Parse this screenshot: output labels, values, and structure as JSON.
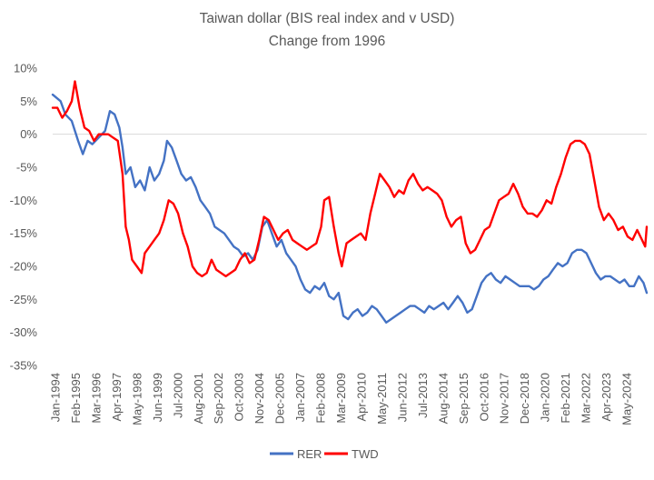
{
  "chart_data": {
    "type": "line",
    "title": "Taiwan dollar (BIS real index and v USD)",
    "subtitle": "Change from 1996",
    "x_tick_labels": [
      "Jan-1994",
      "Feb-1995",
      "Mar-1996",
      "Apr-1997",
      "May-1998",
      "Jun-1999",
      "Jul-2000",
      "Aug-2001",
      "Sep-2002",
      "Oct-2003",
      "Nov-2004",
      "Dec-2005",
      "Jan-2007",
      "Feb-2008",
      "Mar-2009",
      "Apr-2010",
      "May-2011",
      "Jun-2012",
      "Jul-2013",
      "Aug-2014",
      "Sep-2015",
      "Oct-2016",
      "Nov-2017",
      "Dec-2018",
      "Jan-2020",
      "Feb-2021",
      "Mar-2022",
      "Apr-2023",
      "May-2024"
    ],
    "x_range": [
      "1994-01",
      "2025-03"
    ],
    "y_tick_labels": [
      "10%",
      "5%",
      "0%",
      "-5%",
      "-10%",
      "-15%",
      "-20%",
      "-25%",
      "-30%",
      "-35%"
    ],
    "ylim": [
      -35,
      10
    ],
    "y_unit": "%",
    "grid": false,
    "legend_position": "bottom",
    "series": [
      {
        "name": "RER",
        "color": "#4472C4",
        "points": [
          [
            "1994-01",
            6.0
          ],
          [
            "1994-06",
            5.0
          ],
          [
            "1994-09",
            3.0
          ],
          [
            "1995-01",
            2.0
          ],
          [
            "1995-05",
            -1.0
          ],
          [
            "1995-08",
            -3.0
          ],
          [
            "1995-11",
            -1.0
          ],
          [
            "1996-02",
            -1.5
          ],
          [
            "1996-06",
            -0.5
          ],
          [
            "1996-10",
            0.5
          ],
          [
            "1997-01",
            3.5
          ],
          [
            "1997-04",
            3.0
          ],
          [
            "1997-07",
            1.0
          ],
          [
            "1997-09",
            -2.0
          ],
          [
            "1997-11",
            -6.0
          ],
          [
            "1998-02",
            -5.0
          ],
          [
            "1998-05",
            -8.0
          ],
          [
            "1998-08",
            -7.0
          ],
          [
            "1998-11",
            -8.5
          ],
          [
            "1999-02",
            -5.0
          ],
          [
            "1999-05",
            -7.0
          ],
          [
            "1999-08",
            -6.0
          ],
          [
            "1999-11",
            -4.0
          ],
          [
            "2000-01",
            -1.0
          ],
          [
            "2000-04",
            -2.0
          ],
          [
            "2000-07",
            -4.0
          ],
          [
            "2000-10",
            -6.0
          ],
          [
            "2001-01",
            -7.0
          ],
          [
            "2001-04",
            -6.5
          ],
          [
            "2001-07",
            -8.0
          ],
          [
            "2001-10",
            -10.0
          ],
          [
            "2002-01",
            -11.0
          ],
          [
            "2002-04",
            -12.0
          ],
          [
            "2002-07",
            -14.0
          ],
          [
            "2002-10",
            -14.5
          ],
          [
            "2003-01",
            -15.0
          ],
          [
            "2003-04",
            -16.0
          ],
          [
            "2003-07",
            -17.0
          ],
          [
            "2003-10",
            -17.5
          ],
          [
            "2004-01",
            -18.5
          ],
          [
            "2004-04",
            -18.0
          ],
          [
            "2004-07",
            -19.0
          ],
          [
            "2004-10",
            -17.5
          ],
          [
            "2005-01",
            -14.0
          ],
          [
            "2005-04",
            -13.0
          ],
          [
            "2005-07",
            -15.0
          ],
          [
            "2005-10",
            -17.0
          ],
          [
            "2006-01",
            -16.0
          ],
          [
            "2006-04",
            -18.0
          ],
          [
            "2006-07",
            -19.0
          ],
          [
            "2006-10",
            -20.0
          ],
          [
            "2007-01",
            -22.0
          ],
          [
            "2007-04",
            -23.5
          ],
          [
            "2007-07",
            -24.0
          ],
          [
            "2007-10",
            -23.0
          ],
          [
            "2008-01",
            -23.5
          ],
          [
            "2008-04",
            -22.5
          ],
          [
            "2008-07",
            -24.5
          ],
          [
            "2008-10",
            -25.0
          ],
          [
            "2009-01",
            -24.0
          ],
          [
            "2009-04",
            -27.5
          ],
          [
            "2009-07",
            -28.0
          ],
          [
            "2009-10",
            -27.0
          ],
          [
            "2010-01",
            -26.5
          ],
          [
            "2010-04",
            -27.5
          ],
          [
            "2010-07",
            -27.0
          ],
          [
            "2010-10",
            -26.0
          ],
          [
            "2011-01",
            -26.5
          ],
          [
            "2011-04",
            -27.5
          ],
          [
            "2011-07",
            -28.5
          ],
          [
            "2011-10",
            -28.0
          ],
          [
            "2012-01",
            -27.5
          ],
          [
            "2012-04",
            -27.0
          ],
          [
            "2012-07",
            -26.5
          ],
          [
            "2012-10",
            -26.0
          ],
          [
            "2013-01",
            -26.0
          ],
          [
            "2013-04",
            -26.5
          ],
          [
            "2013-07",
            -27.0
          ],
          [
            "2013-10",
            -26.0
          ],
          [
            "2014-01",
            -26.5
          ],
          [
            "2014-04",
            -26.0
          ],
          [
            "2014-07",
            -25.5
          ],
          [
            "2014-10",
            -26.5
          ],
          [
            "2015-01",
            -25.5
          ],
          [
            "2015-04",
            -24.5
          ],
          [
            "2015-07",
            -25.5
          ],
          [
            "2015-10",
            -27.0
          ],
          [
            "2016-01",
            -26.5
          ],
          [
            "2016-04",
            -24.5
          ],
          [
            "2016-07",
            -22.5
          ],
          [
            "2016-10",
            -21.5
          ],
          [
            "2017-01",
            -21.0
          ],
          [
            "2017-04",
            -22.0
          ],
          [
            "2017-07",
            -22.5
          ],
          [
            "2017-10",
            -21.5
          ],
          [
            "2018-01",
            -22.0
          ],
          [
            "2018-04",
            -22.5
          ],
          [
            "2018-07",
            -23.0
          ],
          [
            "2018-10",
            -23.0
          ],
          [
            "2019-01",
            -23.0
          ],
          [
            "2019-04",
            -23.5
          ],
          [
            "2019-07",
            -23.0
          ],
          [
            "2019-10",
            -22.0
          ],
          [
            "2020-01",
            -21.5
          ],
          [
            "2020-04",
            -20.5
          ],
          [
            "2020-07",
            -19.5
          ],
          [
            "2020-10",
            -20.0
          ],
          [
            "2021-01",
            -19.5
          ],
          [
            "2021-04",
            -18.0
          ],
          [
            "2021-07",
            -17.5
          ],
          [
            "2021-10",
            -17.5
          ],
          [
            "2022-01",
            -18.0
          ],
          [
            "2022-04",
            -19.5
          ],
          [
            "2022-07",
            -21.0
          ],
          [
            "2022-10",
            -22.0
          ],
          [
            "2023-01",
            -21.5
          ],
          [
            "2023-04",
            -21.5
          ],
          [
            "2023-07",
            -22.0
          ],
          [
            "2023-10",
            -22.5
          ],
          [
            "2024-01",
            -22.0
          ],
          [
            "2024-04",
            -23.0
          ],
          [
            "2024-07",
            -23.0
          ],
          [
            "2024-10",
            -21.5
          ],
          [
            "2025-01",
            -22.5
          ],
          [
            "2025-03",
            -24.0
          ]
        ]
      },
      {
        "name": "TWD",
        "color": "#FF0000",
        "points": [
          [
            "1994-01",
            4.0
          ],
          [
            "1994-04",
            4.0
          ],
          [
            "1994-07",
            2.5
          ],
          [
            "1994-10",
            3.5
          ],
          [
            "1995-01",
            5.0
          ],
          [
            "1995-03",
            8.0
          ],
          [
            "1995-06",
            4.0
          ],
          [
            "1995-09",
            1.0
          ],
          [
            "1995-12",
            0.5
          ],
          [
            "1996-03",
            -1.0
          ],
          [
            "1996-06",
            0.0
          ],
          [
            "1996-09",
            0.0
          ],
          [
            "1996-12",
            0.0
          ],
          [
            "1997-03",
            -0.5
          ],
          [
            "1997-06",
            -1.0
          ],
          [
            "1997-09",
            -6.0
          ],
          [
            "1997-11",
            -14.0
          ],
          [
            "1998-01",
            -16.0
          ],
          [
            "1998-03",
            -19.0
          ],
          [
            "1998-06",
            -20.0
          ],
          [
            "1998-09",
            -21.0
          ],
          [
            "1998-11",
            -18.0
          ],
          [
            "1999-02",
            -17.0
          ],
          [
            "1999-05",
            -16.0
          ],
          [
            "1999-08",
            -15.0
          ],
          [
            "1999-11",
            -13.0
          ],
          [
            "2000-02",
            -10.0
          ],
          [
            "2000-05",
            -10.5
          ],
          [
            "2000-08",
            -12.0
          ],
          [
            "2000-11",
            -15.0
          ],
          [
            "2001-02",
            -17.0
          ],
          [
            "2001-05",
            -20.0
          ],
          [
            "2001-08",
            -21.0
          ],
          [
            "2001-11",
            -21.5
          ],
          [
            "2002-02",
            -21.0
          ],
          [
            "2002-05",
            -19.0
          ],
          [
            "2002-08",
            -20.5
          ],
          [
            "2002-11",
            -21.0
          ],
          [
            "2003-02",
            -21.5
          ],
          [
            "2003-05",
            -21.0
          ],
          [
            "2003-08",
            -20.5
          ],
          [
            "2003-11",
            -19.0
          ],
          [
            "2004-02",
            -18.0
          ],
          [
            "2004-05",
            -19.5
          ],
          [
            "2004-08",
            -19.0
          ],
          [
            "2004-11",
            -16.0
          ],
          [
            "2005-02",
            -12.5
          ],
          [
            "2005-05",
            -13.0
          ],
          [
            "2005-08",
            -14.5
          ],
          [
            "2005-11",
            -16.0
          ],
          [
            "2006-02",
            -15.0
          ],
          [
            "2006-05",
            -14.5
          ],
          [
            "2006-08",
            -16.0
          ],
          [
            "2006-11",
            -16.5
          ],
          [
            "2007-02",
            -17.0
          ],
          [
            "2007-05",
            -17.5
          ],
          [
            "2007-08",
            -17.0
          ],
          [
            "2007-11",
            -16.5
          ],
          [
            "2008-02",
            -14.0
          ],
          [
            "2008-04",
            -10.0
          ],
          [
            "2008-07",
            -9.5
          ],
          [
            "2008-10",
            -14.0
          ],
          [
            "2009-01",
            -18.0
          ],
          [
            "2009-03",
            -20.0
          ],
          [
            "2009-06",
            -16.5
          ],
          [
            "2009-09",
            -16.0
          ],
          [
            "2009-12",
            -15.5
          ],
          [
            "2010-03",
            -15.0
          ],
          [
            "2010-06",
            -16.0
          ],
          [
            "2010-09",
            -12.0
          ],
          [
            "2010-12",
            -9.0
          ],
          [
            "2011-03",
            -6.0
          ],
          [
            "2011-06",
            -7.0
          ],
          [
            "2011-09",
            -8.0
          ],
          [
            "2011-12",
            -9.5
          ],
          [
            "2012-03",
            -8.5
          ],
          [
            "2012-06",
            -9.0
          ],
          [
            "2012-09",
            -7.0
          ],
          [
            "2012-12",
            -6.0
          ],
          [
            "2013-03",
            -7.5
          ],
          [
            "2013-06",
            -8.5
          ],
          [
            "2013-09",
            -8.0
          ],
          [
            "2013-12",
            -8.5
          ],
          [
            "2014-03",
            -9.0
          ],
          [
            "2014-06",
            -10.0
          ],
          [
            "2014-09",
            -12.5
          ],
          [
            "2014-12",
            -14.0
          ],
          [
            "2015-03",
            -13.0
          ],
          [
            "2015-06",
            -12.5
          ],
          [
            "2015-09",
            -16.5
          ],
          [
            "2015-12",
            -18.0
          ],
          [
            "2016-03",
            -17.5
          ],
          [
            "2016-06",
            -16.0
          ],
          [
            "2016-09",
            -14.5
          ],
          [
            "2016-12",
            -14.0
          ],
          [
            "2017-03",
            -12.0
          ],
          [
            "2017-06",
            -10.0
          ],
          [
            "2017-09",
            -9.5
          ],
          [
            "2017-12",
            -9.0
          ],
          [
            "2018-03",
            -7.5
          ],
          [
            "2018-06",
            -9.0
          ],
          [
            "2018-09",
            -11.0
          ],
          [
            "2018-12",
            -12.0
          ],
          [
            "2019-03",
            -12.0
          ],
          [
            "2019-06",
            -12.5
          ],
          [
            "2019-09",
            -11.5
          ],
          [
            "2019-12",
            -10.0
          ],
          [
            "2020-03",
            -10.5
          ],
          [
            "2020-06",
            -8.0
          ],
          [
            "2020-09",
            -6.0
          ],
          [
            "2020-12",
            -3.5
          ],
          [
            "2021-03",
            -1.5
          ],
          [
            "2021-06",
            -1.0
          ],
          [
            "2021-09",
            -1.0
          ],
          [
            "2021-12",
            -1.5
          ],
          [
            "2022-03",
            -3.0
          ],
          [
            "2022-06",
            -7.0
          ],
          [
            "2022-09",
            -11.0
          ],
          [
            "2022-12",
            -13.0
          ],
          [
            "2023-03",
            -12.0
          ],
          [
            "2023-06",
            -13.0
          ],
          [
            "2023-09",
            -14.5
          ],
          [
            "2023-12",
            -14.0
          ],
          [
            "2024-03",
            -15.5
          ],
          [
            "2024-06",
            -16.0
          ],
          [
            "2024-09",
            -14.5
          ],
          [
            "2024-12",
            -16.0
          ],
          [
            "2025-02",
            -17.0
          ],
          [
            "2025-03",
            -14.0
          ]
        ]
      }
    ]
  }
}
